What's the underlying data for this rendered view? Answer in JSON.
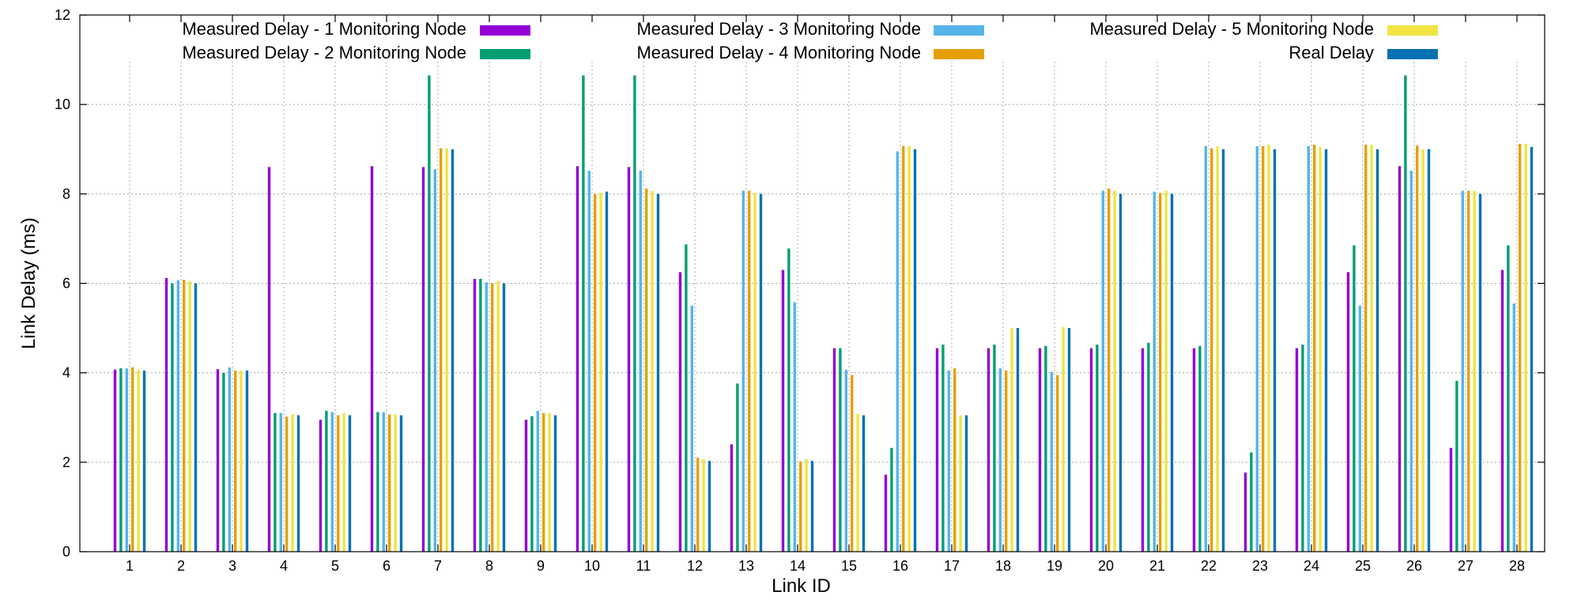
{
  "chart_data": {
    "type": "bar",
    "title": "",
    "xlabel": "Link ID",
    "ylabel": "Link Delay (ms)",
    "ylim": [
      0,
      12
    ],
    "yticks": [
      0,
      2,
      4,
      6,
      8,
      10,
      12
    ],
    "grid": true,
    "legend_position": "top",
    "categories": [
      "1",
      "2",
      "3",
      "4",
      "5",
      "6",
      "7",
      "8",
      "9",
      "10",
      "11",
      "12",
      "13",
      "14",
      "15",
      "16",
      "17",
      "18",
      "19",
      "20",
      "21",
      "22",
      "23",
      "24",
      "25",
      "26",
      "27",
      "28"
    ],
    "series": [
      {
        "name": "Measured Delay - 1 Monitoring Node",
        "color": "#9400d3",
        "values": [
          4.07,
          6.12,
          4.08,
          8.6,
          2.95,
          8.62,
          8.6,
          6.1,
          2.95,
          8.62,
          8.6,
          6.25,
          2.4,
          6.3,
          4.55,
          1.72,
          4.55,
          4.55,
          4.55,
          4.55,
          4.55,
          4.55,
          1.77,
          4.55,
          6.25,
          8.62,
          2.32,
          6.3
        ]
      },
      {
        "name": "Measured Delay - 2 Monitoring Node",
        "color": "#009e73",
        "values": [
          4.1,
          6.0,
          4.0,
          3.1,
          3.15,
          3.12,
          10.65,
          6.1,
          3.03,
          10.65,
          10.65,
          6.87,
          3.76,
          6.78,
          4.55,
          2.32,
          4.63,
          4.63,
          4.6,
          4.63,
          4.67,
          4.6,
          2.22,
          4.63,
          6.85,
          10.65,
          3.82,
          6.85
        ]
      },
      {
        "name": "Measured Delay - 3 Monitoring Node",
        "color": "#56b4e9",
        "values": [
          4.1,
          6.07,
          4.12,
          3.1,
          3.12,
          3.12,
          8.55,
          6.02,
          3.15,
          8.52,
          8.52,
          5.5,
          8.07,
          5.58,
          4.07,
          8.95,
          4.05,
          4.1,
          4.02,
          8.07,
          8.05,
          9.07,
          9.07,
          9.07,
          5.5,
          8.52,
          8.07,
          5.55
        ]
      },
      {
        "name": "Measured Delay - 4 Monitoring Node",
        "color": "#e69f00",
        "values": [
          4.12,
          6.08,
          4.05,
          3.02,
          3.05,
          3.07,
          9.02,
          6.0,
          3.1,
          8.0,
          8.12,
          2.1,
          8.07,
          2.02,
          3.95,
          9.07,
          4.1,
          4.05,
          3.95,
          8.12,
          8.02,
          9.02,
          9.07,
          9.1,
          9.1,
          9.08,
          8.07,
          9.12
        ]
      },
      {
        "name": "Measured Delay - 5 Monitoring Node",
        "color": "#f0e442",
        "values": [
          4.07,
          6.05,
          4.05,
          3.07,
          3.1,
          3.07,
          9.02,
          6.05,
          3.1,
          8.03,
          8.07,
          2.07,
          8.02,
          2.07,
          3.08,
          9.07,
          3.05,
          5.0,
          5.02,
          8.07,
          8.07,
          9.07,
          9.1,
          9.05,
          9.1,
          9.0,
          8.07,
          9.12
        ]
      },
      {
        "name": "Real Delay",
        "color": "#0072b2",
        "values": [
          4.05,
          6.0,
          4.05,
          3.05,
          3.05,
          3.05,
          9.0,
          6.0,
          3.05,
          8.05,
          8.0,
          2.03,
          8.0,
          2.03,
          3.05,
          9.0,
          3.05,
          5.0,
          5.0,
          8.0,
          8.0,
          9.0,
          9.0,
          9.0,
          9.0,
          9.0,
          8.0,
          9.05
        ]
      }
    ]
  }
}
